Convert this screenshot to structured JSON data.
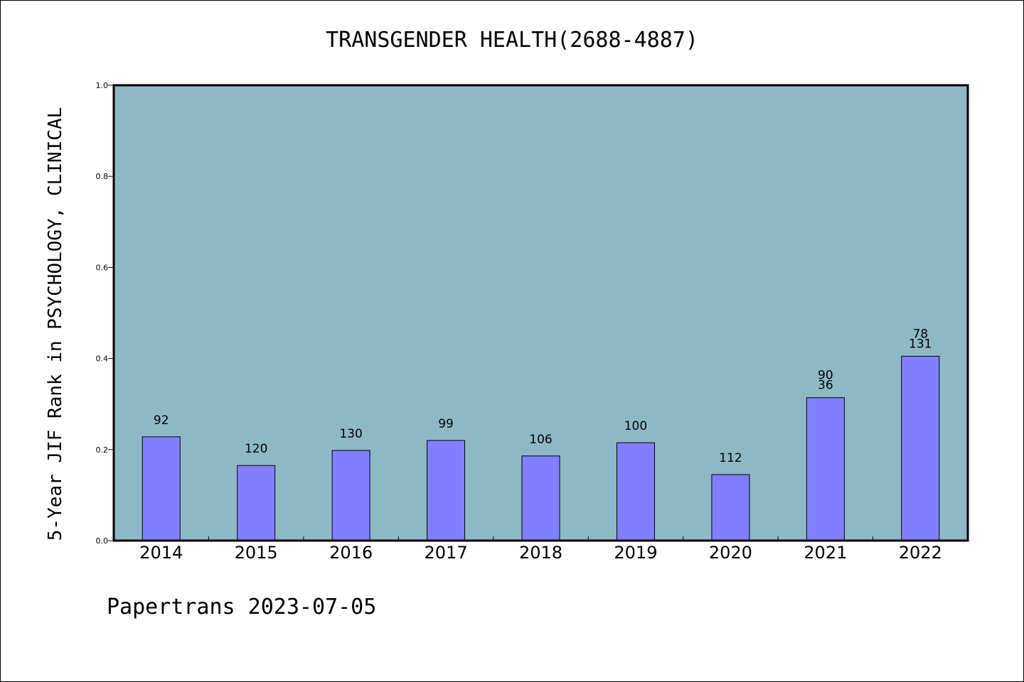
{
  "chart_data": {
    "type": "bar",
    "title": "TRANSGENDER HEALTH(2688-4887)",
    "ylabel": "5-Year JIF Rank in PSYCHOLOGY, CLINICAL",
    "xlabel": "",
    "categories": [
      "2014",
      "2015",
      "2016",
      "2017",
      "2018",
      "2019",
      "2020",
      "2021",
      "2022"
    ],
    "values": [
      0.228,
      0.165,
      0.198,
      0.22,
      0.186,
      0.215,
      0.145,
      0.314,
      0.405
    ],
    "bar_labels": [
      [
        "92"
      ],
      [
        "120"
      ],
      [
        "130"
      ],
      [
        "99"
      ],
      [
        "106"
      ],
      [
        "100"
      ],
      [
        "112"
      ],
      [
        "90",
        "36"
      ],
      [
        "78",
        "131"
      ]
    ],
    "ylim": [
      0,
      1.0
    ],
    "yticks": [
      "0.0",
      "0.2",
      "0.4",
      "0.6",
      "0.8",
      "1.0"
    ],
    "grid": false,
    "colors": {
      "plot_background": "#8fb8c6",
      "bar_fill": "#8080ff",
      "bar_stroke": "#000000"
    }
  },
  "footer": {
    "watermark": "Papertrans 2023-07-05"
  }
}
